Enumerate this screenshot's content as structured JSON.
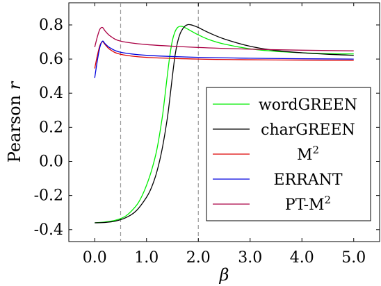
{
  "chart_data": {
    "type": "line",
    "xlabel": "β",
    "ylabel_text": "Pearson ",
    "ylabel_var": "r",
    "xlim": [
      -0.5,
      5.5
    ],
    "ylim": [
      -0.47,
      0.93
    ],
    "xticks": [
      0.0,
      1.0,
      2.0,
      3.0,
      4.0,
      5.0
    ],
    "xtick_labels": [
      "0.0",
      "1.0",
      "2.0",
      "3.0",
      "4.0",
      "5.0"
    ],
    "yticks": [
      0.8,
      0.6,
      0.4,
      0.2,
      0.0,
      -0.2,
      -0.4
    ],
    "ytick_labels": [
      "0.8",
      "0.6",
      "0.4",
      "0.2",
      "0.0",
      "-0.2",
      "-0.4"
    ],
    "vlines": [
      0.5,
      2.0
    ],
    "legend_position": "lower-right",
    "grid": false,
    "series": [
      {
        "name": "wordGREEN",
        "label_base": "wordGREEN",
        "label_sup": "",
        "color": "#00ee00",
        "x": [
          0.0,
          0.2,
          0.4,
          0.6,
          0.8,
          0.9,
          1.0,
          1.1,
          1.2,
          1.3,
          1.35,
          1.4,
          1.45,
          1.5,
          1.55,
          1.6,
          1.65,
          1.7,
          1.8,
          1.9,
          2.0,
          2.2,
          2.5,
          3.0,
          3.5,
          4.0,
          4.5,
          5.0
        ],
        "y": [
          -0.36,
          -0.355,
          -0.345,
          -0.32,
          -0.26,
          -0.21,
          -0.14,
          -0.05,
          0.07,
          0.25,
          0.37,
          0.5,
          0.62,
          0.71,
          0.76,
          0.785,
          0.792,
          0.79,
          0.775,
          0.758,
          0.742,
          0.715,
          0.688,
          0.66,
          0.645,
          0.637,
          0.632,
          0.63
        ]
      },
      {
        "name": "charGREEN",
        "label_base": "charGREEN",
        "label_sup": "",
        "color": "#000000",
        "x": [
          0.0,
          0.2,
          0.4,
          0.6,
          0.8,
          1.0,
          1.1,
          1.2,
          1.3,
          1.4,
          1.45,
          1.5,
          1.55,
          1.6,
          1.65,
          1.7,
          1.75,
          1.8,
          1.85,
          1.9,
          2.0,
          2.2,
          2.5,
          3.0,
          3.5,
          4.0,
          4.5,
          5.0
        ],
        "y": [
          -0.36,
          -0.358,
          -0.35,
          -0.33,
          -0.29,
          -0.21,
          -0.15,
          -0.06,
          0.07,
          0.25,
          0.37,
          0.5,
          0.62,
          0.7,
          0.75,
          0.778,
          0.795,
          0.802,
          0.801,
          0.797,
          0.785,
          0.755,
          0.718,
          0.675,
          0.65,
          0.637,
          0.628,
          0.622
        ]
      },
      {
        "name": "M2",
        "label_base": "M",
        "label_sup": "2",
        "color": "#dd0000",
        "x": [
          0.0,
          0.05,
          0.1,
          0.15,
          0.2,
          0.3,
          0.5,
          1.0,
          2.0,
          3.0,
          4.0,
          5.0
        ],
        "y": [
          0.545,
          0.62,
          0.68,
          0.702,
          0.685,
          0.655,
          0.628,
          0.61,
          0.6,
          0.596,
          0.594,
          0.593
        ]
      },
      {
        "name": "ERRANT",
        "label_base": "ERRANT",
        "label_sup": "",
        "color": "#0000dd",
        "x": [
          0.0,
          0.05,
          0.1,
          0.15,
          0.2,
          0.3,
          0.5,
          1.0,
          2.0,
          3.0,
          4.0,
          5.0
        ],
        "y": [
          0.49,
          0.59,
          0.67,
          0.705,
          0.69,
          0.665,
          0.64,
          0.622,
          0.61,
          0.605,
          0.602,
          0.6
        ]
      },
      {
        "name": "PT-M2",
        "label_base": "PT-M",
        "label_sup": "2",
        "color": "#aa0044",
        "x": [
          0.0,
          0.05,
          0.1,
          0.15,
          0.2,
          0.3,
          0.5,
          1.0,
          2.0,
          3.0,
          4.0,
          5.0
        ],
        "y": [
          0.67,
          0.73,
          0.775,
          0.785,
          0.765,
          0.735,
          0.705,
          0.685,
          0.668,
          0.658,
          0.652,
          0.648
        ]
      }
    ]
  }
}
